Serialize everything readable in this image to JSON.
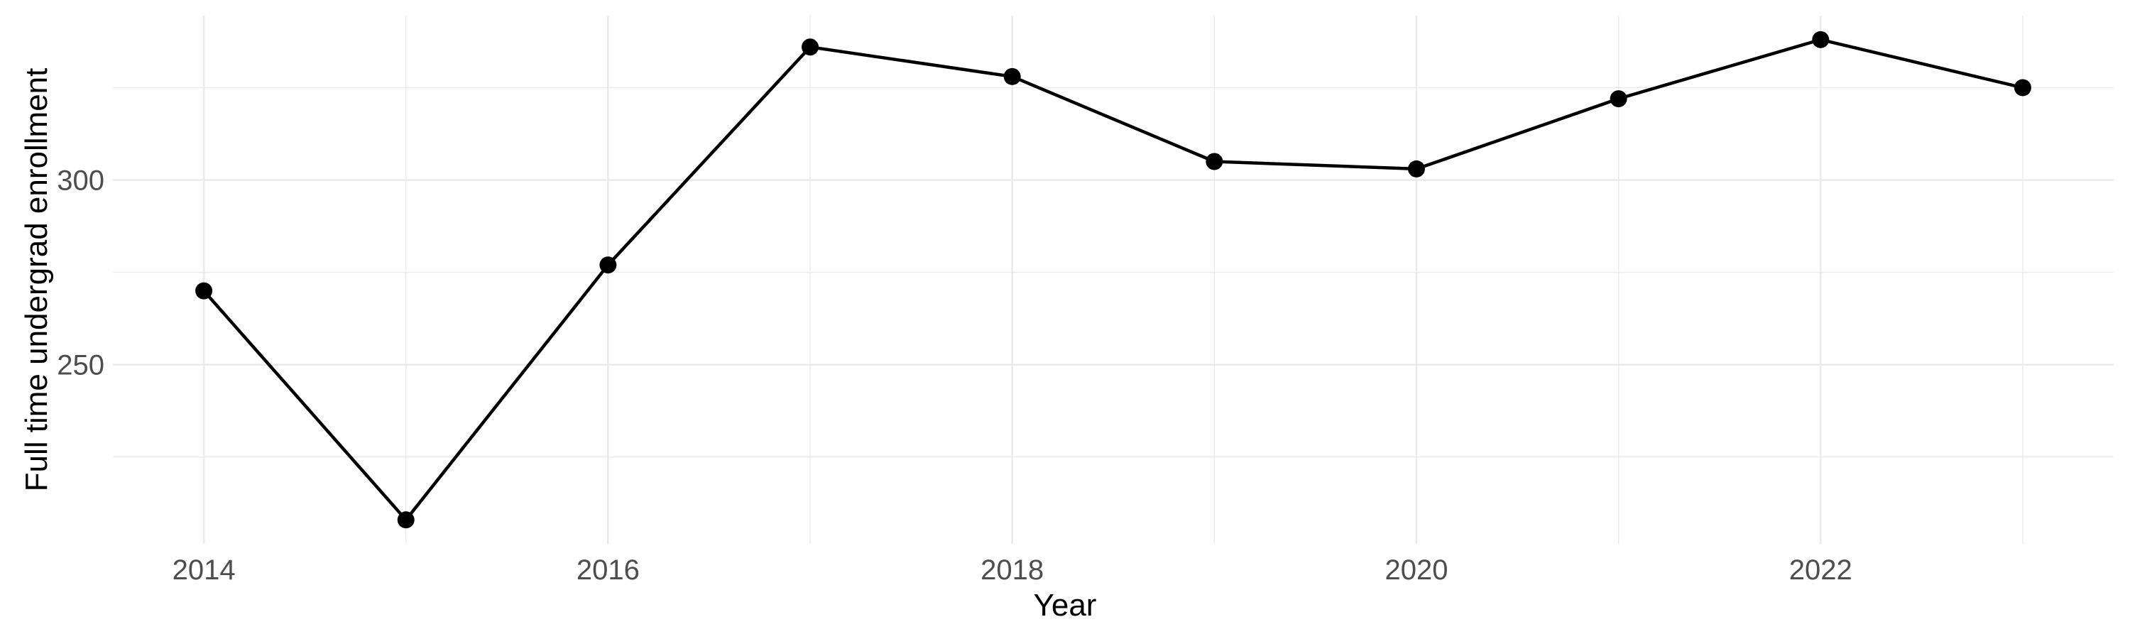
{
  "chart_data": {
    "type": "line",
    "xlabel": "Year",
    "ylabel": "Full time undergrad enrollment",
    "x": [
      2014,
      2015,
      2016,
      2017,
      2018,
      2019,
      2020,
      2021,
      2022,
      2023
    ],
    "y": [
      270,
      208,
      277,
      336,
      328,
      305,
      303,
      322,
      338,
      325
    ],
    "series_name": "Full time undergrad enrollment",
    "x_ticks": [
      2014,
      2016,
      2018,
      2020,
      2022
    ],
    "x_tick_labels": [
      "2014",
      "2016",
      "2018",
      "2020",
      "2022"
    ],
    "x_minor_breaks": [
      2015,
      2017,
      2019,
      2021,
      2023
    ],
    "y_ticks": [
      250,
      300
    ],
    "y_tick_labels": [
      "250",
      "300"
    ],
    "y_minor_breaks": [
      225,
      275,
      325
    ],
    "xlim": [
      2013.55,
      2023.45
    ],
    "ylim": [
      201.5,
      344.5
    ],
    "grid": "major-and-minor",
    "legend": "none",
    "colors": {
      "line": "#000000",
      "point": "#000000",
      "grid": "#EBEBEB",
      "tick_text": "#4D4D4D",
      "title_text": "#000000",
      "background": "#FFFFFF"
    }
  }
}
